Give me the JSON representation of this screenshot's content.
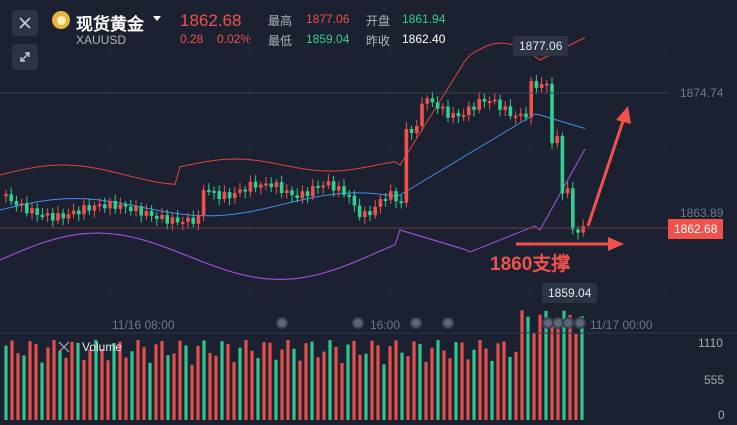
{
  "header": {
    "name": "现货黄金",
    "code": "XAUUSD",
    "last_price": "1862.68",
    "change": "0.28",
    "change_pct": "0.02%",
    "high_label": "最高",
    "high_value": "1877.06",
    "low_label": "最低",
    "low_value": "1859.04",
    "open_label": "开盘",
    "open_value": "1861.94",
    "prev_close_label": "昨收",
    "prev_close_value": "1862.40"
  },
  "chart": {
    "price_labels": [
      "1874.74",
      "1863.89"
    ],
    "current_price_tag": "1862.68",
    "high_marker": "1877.06",
    "low_marker": "1859.04",
    "time_labels": [
      "11/16 08:00",
      "16:00",
      "11/17 00:00"
    ],
    "annotation": "1860支撑"
  },
  "volume": {
    "title": "Volume",
    "axis_labels": [
      "1110",
      "555",
      "0"
    ]
  },
  "colors": {
    "up": "#f0524b",
    "down": "#2fd092",
    "background": "#1b2130",
    "upper_band": "#e0443c",
    "middle_band": "#3f8ff0",
    "lower_band": "#9b4dd8"
  },
  "icons": [
    "close-icon",
    "expand-icon",
    "gold-coin-icon",
    "chevron-down-icon"
  ],
  "chart_data": {
    "type": "candlestick",
    "y_range": [
      1856,
      1880
    ],
    "reference_prices": [
      1874.74,
      1863.89
    ],
    "current_price": 1862.68,
    "high": 1877.06,
    "low": 1859.04,
    "volume_range": [
      0,
      1110
    ]
  }
}
